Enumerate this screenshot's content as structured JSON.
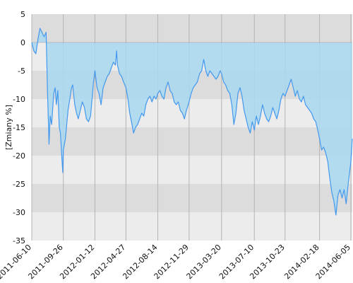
{
  "chart_data": {
    "type": "area",
    "ylabel": "[Zmiany %]",
    "ylim": [
      -35,
      5
    ],
    "y_ticks": [
      5,
      0,
      -5,
      -10,
      -15,
      -20,
      -25,
      -30,
      -35
    ],
    "x_ticks": [
      "2011-06-10",
      "2011-09-26",
      "2012-01-12",
      "2012-04-27",
      "2012-08-14",
      "2012-11-29",
      "2013-03-20",
      "2013-07-10",
      "2013-10-23",
      "2014-02-18",
      "2014-06-05"
    ],
    "x_range": [
      "2011-06-10",
      "2014-06-10"
    ],
    "grid": true,
    "colors": {
      "line": "#4499ee",
      "fill": "#a9d8f0",
      "band_dark": "#dcdcdc",
      "band_light": "#ececec",
      "vgrid": "#b4b4b4",
      "baseline": "#999999"
    },
    "series": [
      {
        "points": [
          [
            "2011-06-10",
            0.0
          ],
          [
            "2011-06-17",
            -1.5
          ],
          [
            "2011-06-24",
            -2.0
          ],
          [
            "2011-07-01",
            0.5
          ],
          [
            "2011-07-08",
            2.5
          ],
          [
            "2011-07-13",
            2.0
          ],
          [
            "2011-07-22",
            1.0
          ],
          [
            "2011-07-29",
            1.8
          ],
          [
            "2011-08-03",
            -9.0
          ],
          [
            "2011-08-08",
            -18.0
          ],
          [
            "2011-08-12",
            -13.0
          ],
          [
            "2011-08-17",
            -14.5
          ],
          [
            "2011-08-24",
            -9.0
          ],
          [
            "2011-08-29",
            -8.0
          ],
          [
            "2011-09-02",
            -11.0
          ],
          [
            "2011-09-07",
            -8.5
          ],
          [
            "2011-09-12",
            -15.0
          ],
          [
            "2011-09-16",
            -16.0
          ],
          [
            "2011-09-21",
            -20.5
          ],
          [
            "2011-09-24",
            -23.0
          ],
          [
            "2011-09-26",
            -19.0
          ],
          [
            "2011-10-03",
            -17.0
          ],
          [
            "2011-10-12",
            -12.0
          ],
          [
            "2011-10-18",
            -10.0
          ],
          [
            "2011-10-24",
            -8.0
          ],
          [
            "2011-10-28",
            -7.5
          ],
          [
            "2011-11-04",
            -11.0
          ],
          [
            "2011-11-10",
            -12.5
          ],
          [
            "2011-11-16",
            -13.5
          ],
          [
            "2011-11-23",
            -12.0
          ],
          [
            "2011-11-30",
            -10.5
          ],
          [
            "2011-12-07",
            -11.5
          ],
          [
            "2011-12-14",
            -13.5
          ],
          [
            "2011-12-21",
            -14.0
          ],
          [
            "2011-12-28",
            -13.0
          ],
          [
            "2012-01-03",
            -9.5
          ],
          [
            "2012-01-07",
            -7.0
          ],
          [
            "2012-01-12",
            -5.0
          ],
          [
            "2012-01-19",
            -8.0
          ],
          [
            "2012-01-26",
            -9.0
          ],
          [
            "2012-02-02",
            -11.0
          ],
          [
            "2012-02-09",
            -8.0
          ],
          [
            "2012-02-16",
            -7.0
          ],
          [
            "2012-02-23",
            -6.0
          ],
          [
            "2012-03-01",
            -5.5
          ],
          [
            "2012-03-08",
            -4.5
          ],
          [
            "2012-03-15",
            -3.5
          ],
          [
            "2012-03-22",
            -4.0
          ],
          [
            "2012-03-26",
            -1.5
          ],
          [
            "2012-03-29",
            -4.0
          ],
          [
            "2012-04-05",
            -5.5
          ],
          [
            "2012-04-12",
            -6.0
          ],
          [
            "2012-04-19",
            -7.0
          ],
          [
            "2012-04-27",
            -8.0
          ],
          [
            "2012-05-04",
            -10.0
          ],
          [
            "2012-05-10",
            -12.5
          ],
          [
            "2012-05-16",
            -14.0
          ],
          [
            "2012-05-23",
            -16.0
          ],
          [
            "2012-05-30",
            -15.0
          ],
          [
            "2012-06-06",
            -14.5
          ],
          [
            "2012-06-13",
            -13.5
          ],
          [
            "2012-06-20",
            -12.5
          ],
          [
            "2012-06-27",
            -13.0
          ],
          [
            "2012-07-04",
            -11.0
          ],
          [
            "2012-07-11",
            -10.0
          ],
          [
            "2012-07-18",
            -9.5
          ],
          [
            "2012-07-25",
            -10.5
          ],
          [
            "2012-08-01",
            -9.5
          ],
          [
            "2012-08-08",
            -10.0
          ],
          [
            "2012-08-14",
            -9.0
          ],
          [
            "2012-08-21",
            -8.5
          ],
          [
            "2012-08-28",
            -9.5
          ],
          [
            "2012-09-04",
            -10.0
          ],
          [
            "2012-09-11",
            -8.0
          ],
          [
            "2012-09-18",
            -7.0
          ],
          [
            "2012-09-25",
            -8.5
          ],
          [
            "2012-10-02",
            -9.0
          ],
          [
            "2012-10-09",
            -10.5
          ],
          [
            "2012-10-16",
            -11.0
          ],
          [
            "2012-10-23",
            -10.5
          ],
          [
            "2012-10-30",
            -12.0
          ],
          [
            "2012-11-06",
            -12.5
          ],
          [
            "2012-11-13",
            -13.5
          ],
          [
            "2012-11-20",
            -12.0
          ],
          [
            "2012-11-29",
            -10.5
          ],
          [
            "2012-12-06",
            -9.0
          ],
          [
            "2012-12-13",
            -8.0
          ],
          [
            "2012-12-20",
            -7.5
          ],
          [
            "2012-12-27",
            -7.0
          ],
          [
            "2013-01-04",
            -5.5
          ],
          [
            "2013-01-11",
            -5.0
          ],
          [
            "2013-01-18",
            -3.0
          ],
          [
            "2013-01-25",
            -5.0
          ],
          [
            "2013-02-01",
            -6.0
          ],
          [
            "2013-02-08",
            -5.0
          ],
          [
            "2013-02-15",
            -5.5
          ],
          [
            "2013-02-22",
            -6.0
          ],
          [
            "2013-03-01",
            -6.5
          ],
          [
            "2013-03-08",
            -6.0
          ],
          [
            "2013-03-15",
            -5.0
          ],
          [
            "2013-03-20",
            -5.5
          ],
          [
            "2013-03-27",
            -7.0
          ],
          [
            "2013-04-03",
            -7.5
          ],
          [
            "2013-04-10",
            -8.5
          ],
          [
            "2013-04-17",
            -9.0
          ],
          [
            "2013-04-24",
            -11.0
          ],
          [
            "2013-05-01",
            -14.5
          ],
          [
            "2013-05-08",
            -12.5
          ],
          [
            "2013-05-15",
            -9.0
          ],
          [
            "2013-05-22",
            -8.0
          ],
          [
            "2013-05-29",
            -9.5
          ],
          [
            "2013-06-05",
            -12.0
          ],
          [
            "2013-06-12",
            -13.5
          ],
          [
            "2013-06-19",
            -15.0
          ],
          [
            "2013-06-26",
            -16.0
          ],
          [
            "2013-07-03",
            -14.0
          ],
          [
            "2013-07-10",
            -15.5
          ],
          [
            "2013-07-17",
            -13.0
          ],
          [
            "2013-07-24",
            -14.5
          ],
          [
            "2013-07-31",
            -13.0
          ],
          [
            "2013-08-07",
            -11.0
          ],
          [
            "2013-08-14",
            -12.5
          ],
          [
            "2013-08-21",
            -13.5
          ],
          [
            "2013-08-28",
            -14.0
          ],
          [
            "2013-09-04",
            -13.0
          ],
          [
            "2013-09-11",
            -11.5
          ],
          [
            "2013-09-18",
            -12.5
          ],
          [
            "2013-09-25",
            -13.5
          ],
          [
            "2013-10-02",
            -12.0
          ],
          [
            "2013-10-09",
            -10.0
          ],
          [
            "2013-10-16",
            -9.0
          ],
          [
            "2013-10-23",
            -9.5
          ],
          [
            "2013-10-30",
            -8.5
          ],
          [
            "2013-11-06",
            -7.5
          ],
          [
            "2013-11-13",
            -6.5
          ],
          [
            "2013-11-20",
            -8.0
          ],
          [
            "2013-11-27",
            -9.5
          ],
          [
            "2013-12-04",
            -8.5
          ],
          [
            "2013-12-11",
            -10.0
          ],
          [
            "2013-12-18",
            -10.5
          ],
          [
            "2013-12-25",
            -9.5
          ],
          [
            "2014-01-01",
            -11.0
          ],
          [
            "2014-01-08",
            -11.5
          ],
          [
            "2014-01-15",
            -12.0
          ],
          [
            "2014-01-22",
            -12.5
          ],
          [
            "2014-01-29",
            -13.5
          ],
          [
            "2014-02-05",
            -14.0
          ],
          [
            "2014-02-12",
            -15.5
          ],
          [
            "2014-02-18",
            -17.0
          ],
          [
            "2014-02-25",
            -19.0
          ],
          [
            "2014-03-04",
            -18.5
          ],
          [
            "2014-03-11",
            -19.5
          ],
          [
            "2014-03-18",
            -21.0
          ],
          [
            "2014-03-25",
            -24.0
          ],
          [
            "2014-04-01",
            -26.5
          ],
          [
            "2014-04-08",
            -28.0
          ],
          [
            "2014-04-15",
            -30.5
          ],
          [
            "2014-04-22",
            -27.0
          ],
          [
            "2014-04-29",
            -26.0
          ],
          [
            "2014-05-06",
            -27.5
          ],
          [
            "2014-05-13",
            -26.0
          ],
          [
            "2014-05-20",
            -28.5
          ],
          [
            "2014-05-27",
            -25.0
          ],
          [
            "2014-06-03",
            -22.0
          ],
          [
            "2014-06-05",
            -21.0
          ],
          [
            "2014-06-10",
            -17.0
          ]
        ]
      }
    ]
  }
}
